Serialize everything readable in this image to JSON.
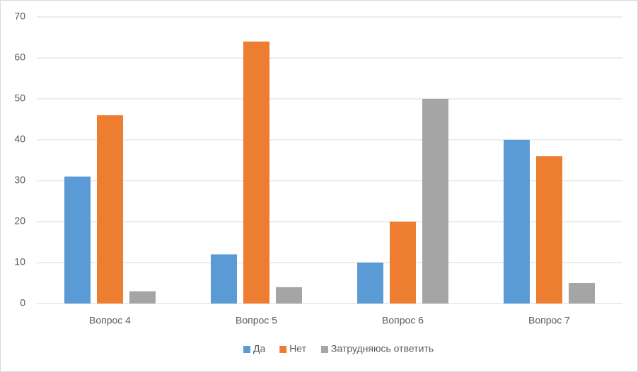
{
  "chart_data": {
    "type": "bar",
    "categories": [
      "Вопрос 4",
      "Вопрос 5",
      "Вопрос 6",
      "Вопрос 7"
    ],
    "series": [
      {
        "name": "Да",
        "color": "#5b9bd5",
        "values": [
          31,
          12,
          10,
          40
        ]
      },
      {
        "name": "Нет",
        "color": "#ed7d31",
        "values": [
          46,
          64,
          20,
          36
        ]
      },
      {
        "name": "Затрудняюсь ответить",
        "color": "#a5a5a5",
        "values": [
          3,
          4,
          50,
          5
        ]
      }
    ],
    "ylim": [
      0,
      70
    ],
    "yticks": [
      0,
      10,
      20,
      30,
      40,
      50,
      60,
      70
    ],
    "grid": true,
    "legend": "bottom"
  }
}
